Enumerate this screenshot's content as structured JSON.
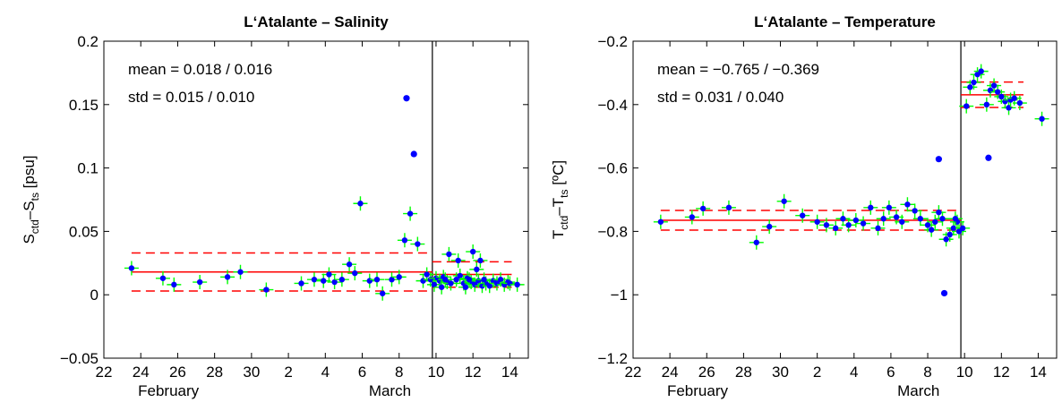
{
  "chart_data": [
    {
      "type": "scatter",
      "title": "L‘Atalante – Salinity",
      "ylabel": {
        "main": "S",
        "sub1": "ctd",
        "mid": "–S",
        "sub2": "ts",
        "unit": " [psu]"
      },
      "stats": {
        "mean": "mean =  0.018 / 0.016",
        "std": "std =  0.015 / 0.010"
      },
      "xlim": [
        22,
        15
      ],
      "ylim": [
        -0.05,
        0.2
      ],
      "yticks": [
        -0.05,
        0,
        0.05,
        0.1,
        0.15,
        0.2
      ],
      "ytick_labels": [
        "−0.05",
        "0",
        "0.05",
        "0.1",
        "0.15",
        "0.2"
      ],
      "xticks": [
        22,
        24,
        26,
        28,
        30,
        32,
        34,
        36,
        38,
        40,
        42,
        44
      ],
      "xtick_labels": [
        "22",
        "24",
        "26",
        "28",
        "30",
        "2",
        "4",
        "6",
        "8",
        "10",
        "12",
        "14"
      ],
      "month_labels": [
        {
          "x": 25.5,
          "text": "February"
        },
        {
          "x": 37.5,
          "text": "March"
        }
      ],
      "divider_x": 39.8,
      "mean_lines": [
        {
          "x": [
            23.5,
            39.8
          ],
          "mean": 0.018,
          "std": 0.015
        },
        {
          "x": [
            39.8,
            44.1
          ],
          "mean": 0.016,
          "std": 0.01
        }
      ],
      "points": [
        [
          23.5,
          0.021
        ],
        [
          25.2,
          0.013
        ],
        [
          25.8,
          0.008
        ],
        [
          27.2,
          0.01
        ],
        [
          28.7,
          0.014
        ],
        [
          29.4,
          0.018
        ],
        [
          30.8,
          0.004
        ],
        [
          32.7,
          0.009
        ],
        [
          33.4,
          0.012
        ],
        [
          33.9,
          0.011
        ],
        [
          34.2,
          0.016
        ],
        [
          34.5,
          0.01
        ],
        [
          34.9,
          0.012
        ],
        [
          35.3,
          0.024
        ],
        [
          35.6,
          0.017
        ],
        [
          35.9,
          0.072
        ],
        [
          36.4,
          0.011
        ],
        [
          36.8,
          0.012
        ],
        [
          37.1,
          0.001
        ],
        [
          37.6,
          0.012
        ],
        [
          38.0,
          0.014
        ],
        [
          38.3,
          0.043
        ],
        [
          38.6,
          0.064
        ],
        [
          39.0,
          0.04
        ],
        [
          39.3,
          0.011
        ],
        [
          39.5,
          0.016
        ],
        [
          39.7,
          0.012
        ],
        [
          40.0,
          0.013
        ],
        [
          40.2,
          0.011
        ],
        [
          40.4,
          0.014
        ],
        [
          40.6,
          0.01
        ],
        [
          40.8,
          0.009
        ],
        [
          41.1,
          0.012
        ],
        [
          41.3,
          0.015
        ],
        [
          41.5,
          0.009
        ],
        [
          41.7,
          0.013
        ],
        [
          41.9,
          0.01
        ],
        [
          42.1,
          0.008
        ],
        [
          42.3,
          0.011
        ],
        [
          42.5,
          0.007
        ],
        [
          42.7,
          0.009
        ],
        [
          42.9,
          0.007
        ],
        [
          43.1,
          0.011
        ],
        [
          43.3,
          0.009
        ],
        [
          43.5,
          0.012
        ],
        [
          43.7,
          0.008
        ],
        [
          43.9,
          0.01
        ],
        [
          44.0,
          0.009
        ],
        [
          39.9,
          0.008
        ],
        [
          40.3,
          0.006
        ],
        [
          40.5,
          0.012
        ],
        [
          40.7,
          0.032
        ],
        [
          41.2,
          0.027
        ],
        [
          41.6,
          0.006
        ],
        [
          41.8,
          0.012
        ],
        [
          42.0,
          0.034
        ],
        [
          42.2,
          0.02
        ],
        [
          42.4,
          0.027
        ],
        [
          42.6,
          0.012
        ],
        [
          44.4,
          0.008
        ]
      ],
      "outliers": [
        [
          38.4,
          0.155
        ],
        [
          38.8,
          0.111
        ]
      ],
      "colors": {
        "point": "#0000ff",
        "cross": "#00ff00",
        "line": "#ff0000"
      }
    },
    {
      "type": "scatter",
      "title": "L‘Atalante – Temperature",
      "ylabel": {
        "main": "T",
        "sub1": "ctd",
        "mid": "–T",
        "sub2": "ts",
        "unit": " [ºC]"
      },
      "stats": {
        "mean": "mean = −0.765 / −0.369",
        "std": "std =  0.031 / 0.040"
      },
      "xlim": [
        22,
        15
      ],
      "ylim": [
        -1.2,
        -0.2
      ],
      "yticks": [
        -1.2,
        -1,
        -0.8,
        -0.6,
        -0.4,
        -0.2
      ],
      "ytick_labels": [
        "−1.2",
        "−1",
        "−0.8",
        "−0.6",
        "−0.4",
        "−0.2"
      ],
      "xticks": [
        22,
        24,
        26,
        28,
        30,
        32,
        34,
        36,
        38,
        40,
        42,
        44
      ],
      "xtick_labels": [
        "22",
        "24",
        "26",
        "28",
        "30",
        "2",
        "4",
        "6",
        "8",
        "10",
        "12",
        "14"
      ],
      "month_labels": [
        {
          "x": 25.5,
          "text": "February"
        },
        {
          "x": 37.5,
          "text": "March"
        }
      ],
      "divider_x": 39.8,
      "mean_lines": [
        {
          "x": [
            23.5,
            39.8
          ],
          "mean": -0.765,
          "std": 0.031
        },
        {
          "x": [
            39.8,
            43.2
          ],
          "mean": -0.369,
          "std": 0.04
        }
      ],
      "points": [
        [
          23.5,
          -0.77
        ],
        [
          25.2,
          -0.755
        ],
        [
          25.8,
          -0.728
        ],
        [
          27.2,
          -0.725
        ],
        [
          28.7,
          -0.835
        ],
        [
          29.4,
          -0.785
        ],
        [
          30.2,
          -0.705
        ],
        [
          31.2,
          -0.75
        ],
        [
          32.0,
          -0.77
        ],
        [
          32.5,
          -0.78
        ],
        [
          33.0,
          -0.79
        ],
        [
          33.4,
          -0.76
        ],
        [
          33.7,
          -0.78
        ],
        [
          34.1,
          -0.765
        ],
        [
          34.5,
          -0.775
        ],
        [
          34.9,
          -0.725
        ],
        [
          35.3,
          -0.79
        ],
        [
          35.6,
          -0.76
        ],
        [
          35.9,
          -0.725
        ],
        [
          36.3,
          -0.755
        ],
        [
          36.6,
          -0.77
        ],
        [
          36.9,
          -0.715
        ],
        [
          37.3,
          -0.735
        ],
        [
          37.6,
          -0.76
        ],
        [
          38.0,
          -0.78
        ],
        [
          38.2,
          -0.795
        ],
        [
          38.4,
          -0.77
        ],
        [
          38.6,
          -0.74
        ],
        [
          38.8,
          -0.76
        ],
        [
          39.0,
          -0.825
        ],
        [
          39.2,
          -0.81
        ],
        [
          39.4,
          -0.79
        ],
        [
          39.6,
          -0.77
        ],
        [
          39.7,
          -0.8
        ],
        [
          39.9,
          -0.79
        ],
        [
          39.5,
          -0.76
        ],
        [
          40.1,
          -0.405
        ],
        [
          40.3,
          -0.345
        ],
        [
          40.5,
          -0.33
        ],
        [
          40.7,
          -0.305
        ],
        [
          40.9,
          -0.295
        ],
        [
          41.2,
          -0.4
        ],
        [
          41.4,
          -0.355
        ],
        [
          41.6,
          -0.34
        ],
        [
          41.8,
          -0.36
        ],
        [
          42.0,
          -0.375
        ],
        [
          42.2,
          -0.39
        ],
        [
          42.4,
          -0.41
        ],
        [
          42.5,
          -0.385
        ],
        [
          42.7,
          -0.38
        ],
        [
          43.0,
          -0.395
        ],
        [
          44.2,
          -0.445
        ]
      ],
      "outliers": [
        [
          38.6,
          -0.572
        ],
        [
          38.9,
          -0.995
        ],
        [
          41.3,
          -0.568
        ]
      ],
      "colors": {
        "point": "#0000ff",
        "cross": "#00ff00",
        "line": "#ff0000"
      }
    }
  ]
}
